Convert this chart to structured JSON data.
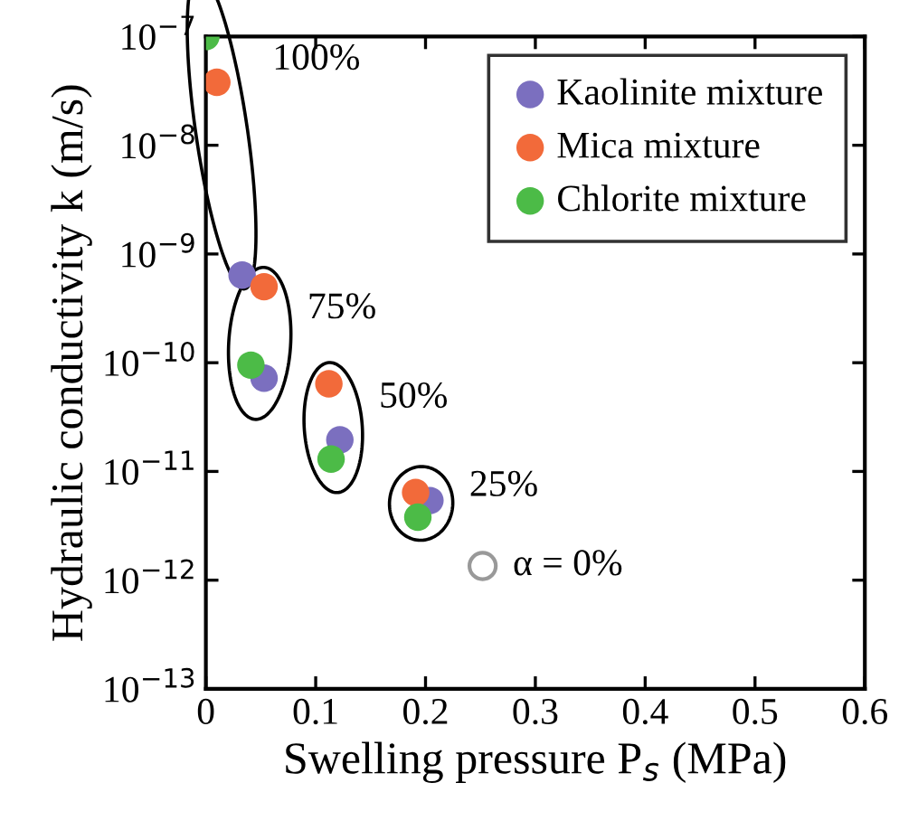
{
  "chart_data": {
    "type": "scatter",
    "xlabel": "Swelling pressure P$_{s}$ (MPa)",
    "ylabel": "Hydraulic conductivity k (m/s)",
    "log": "y",
    "xlim": [
      0,
      0.6
    ],
    "xticks": [
      0,
      0.1,
      0.2,
      0.3,
      0.4,
      0.5,
      0.6
    ],
    "ylim": [
      1e-13,
      1e-07
    ],
    "yticks": [
      {
        "value": 1e-13,
        "label": "10$^{−13}$"
      },
      {
        "value": 1e-12,
        "label": "10$^{−12}$"
      },
      {
        "value": 1e-11,
        "label": "10$^{−11}$"
      },
      {
        "value": 1e-10,
        "label": "10$^{−10}$"
      },
      {
        "value": 1e-09,
        "label": "10$^{−9}$"
      },
      {
        "value": 1e-08,
        "label": "10$^{−8}$"
      },
      {
        "value": 1e-07,
        "label": "10$^{−7}$"
      }
    ],
    "grid": false,
    "legend": "top right",
    "marker": "circle",
    "series": [
      {
        "name": "Kaolinite mixture",
        "color": "#7b6fbf",
        "x": [
          0.033,
          0.053,
          0.122,
          0.204
        ],
        "values": [
          6.4e-10,
          7.2e-11,
          1.95e-11,
          5.4e-12
        ]
      },
      {
        "name": "Mica mixture",
        "color": "#f26a3a",
        "x": [
          0.01,
          0.053,
          0.112,
          0.191
        ],
        "values": [
          3.8e-08,
          5e-10,
          6.4e-11,
          6.4e-12
        ]
      },
      {
        "name": "Chlorite mixture",
        "color": "#4cbb47",
        "x": [
          0,
          0.041,
          0.114,
          0.193
        ],
        "values": [
          1e-07,
          9.5e-11,
          1.3e-11,
          3.8e-12
        ]
      },
      {
        "color": "#999999",
        "marker": "open circle",
        "x": [
          0.252
        ],
        "values": [
          1.35e-12
        ]
      }
    ],
    "annotations": [
      "100%",
      "75%",
      "50%",
      "25%",
      "α = 0%"
    ]
  }
}
